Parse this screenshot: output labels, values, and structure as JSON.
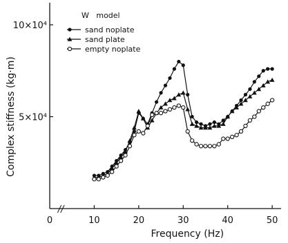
{
  "chart_data": {
    "type": "line",
    "title": "",
    "legend_title": "W   model",
    "legend_position": "top-left",
    "xlabel": "Frequency (Hz)",
    "ylabel": "Complex stiffness (kg·m)",
    "xlim": [
      0,
      52
    ],
    "ylim": [
      0,
      11.2
    ],
    "x_ticks": [
      {
        "value": 0,
        "label": "0"
      },
      {
        "value": 10,
        "label": "10"
      },
      {
        "value": 20,
        "label": "20"
      },
      {
        "value": 30,
        "label": "30"
      },
      {
        "value": 40,
        "label": "40"
      },
      {
        "value": 50,
        "label": "50"
      }
    ],
    "y_ticks": [
      {
        "value": 5,
        "label": "5×10⁴"
      },
      {
        "value": 10,
        "label": "10×10⁴"
      }
    ],
    "x_axis_break": "//",
    "grid": false,
    "series": [
      {
        "name": "sand noplate",
        "marker": "filled-circle",
        "x": [
          10,
          11,
          12,
          13,
          14,
          15,
          16,
          17,
          18,
          19,
          20,
          21,
          22,
          23,
          24,
          25,
          26,
          27,
          28,
          29,
          30,
          31,
          32,
          33,
          34,
          35,
          36,
          37,
          38,
          39,
          40,
          41,
          42,
          43,
          44,
          45,
          46,
          47,
          48,
          49,
          50
        ],
        "y": [
          1.8,
          1.8,
          1.9,
          2.0,
          2.3,
          2.6,
          2.9,
          3.2,
          3.6,
          4.2,
          5.2,
          4.9,
          4.6,
          5.2,
          5.8,
          6.3,
          6.7,
          7.1,
          7.6,
          8.0,
          7.8,
          6.2,
          5.0,
          4.7,
          4.6,
          4.5,
          4.6,
          4.7,
          4.6,
          4.8,
          5.0,
          5.3,
          5.6,
          5.9,
          6.2,
          6.5,
          6.9,
          7.2,
          7.5,
          7.6,
          7.6
        ]
      },
      {
        "name": "sand plate",
        "marker": "filled-triangle",
        "x": [
          10,
          11,
          12,
          13,
          14,
          15,
          16,
          17,
          18,
          19,
          20,
          21,
          22,
          23,
          24,
          25,
          26,
          27,
          28,
          29,
          30,
          31,
          32,
          33,
          34,
          35,
          36,
          37,
          38,
          39,
          40,
          41,
          42,
          43,
          44,
          45,
          46,
          47,
          48,
          49,
          50
        ],
        "y": [
          1.7,
          1.7,
          1.8,
          1.9,
          2.2,
          2.5,
          2.8,
          3.1,
          3.7,
          4.4,
          5.3,
          4.9,
          4.4,
          4.8,
          5.2,
          5.5,
          5.7,
          5.9,
          6.0,
          6.2,
          6.3,
          5.4,
          4.6,
          4.5,
          4.4,
          4.4,
          4.4,
          4.5,
          4.5,
          4.6,
          5.0,
          5.3,
          5.5,
          5.7,
          5.9,
          6.1,
          6.3,
          6.5,
          6.7,
          6.9,
          7.0
        ]
      },
      {
        "name": "empty noplate",
        "marker": "open-circle",
        "x": [
          10,
          11,
          12,
          13,
          14,
          15,
          16,
          17,
          18,
          19,
          20,
          21,
          22,
          23,
          24,
          25,
          26,
          27,
          28,
          29,
          30,
          31,
          32,
          33,
          34,
          35,
          36,
          37,
          38,
          39,
          40,
          41,
          42,
          43,
          44,
          45,
          46,
          47,
          48,
          49,
          50
        ],
        "y": [
          1.6,
          1.6,
          1.7,
          1.8,
          2.0,
          2.3,
          2.6,
          2.9,
          3.4,
          4.0,
          4.2,
          4.1,
          4.5,
          5.1,
          5.2,
          5.2,
          5.3,
          5.4,
          5.5,
          5.6,
          5.5,
          4.2,
          3.7,
          3.5,
          3.4,
          3.4,
          3.4,
          3.4,
          3.5,
          3.8,
          3.8,
          3.9,
          4.0,
          4.2,
          4.5,
          4.8,
          5.0,
          5.3,
          5.5,
          5.7,
          5.9
        ]
      }
    ]
  }
}
